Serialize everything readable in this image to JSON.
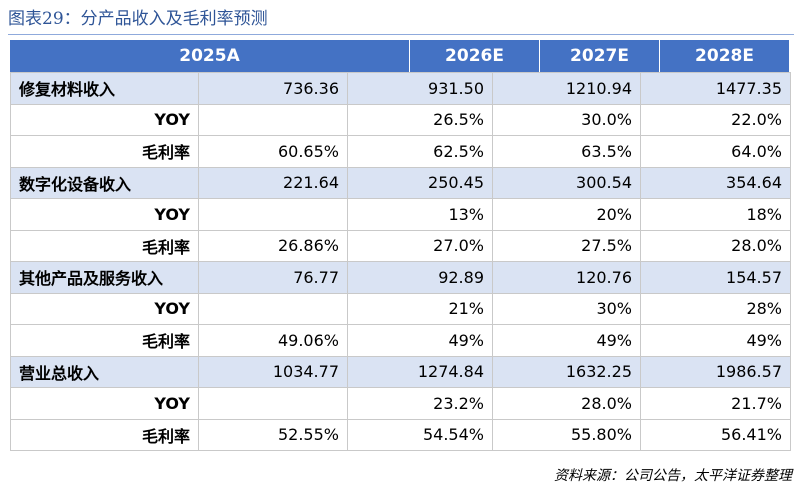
{
  "title": "图表29：分产品收入及毛利率预测",
  "table": {
    "header": [
      "2025A",
      "2026E",
      "2027E",
      "2028E"
    ],
    "rows": [
      [
        "修复材料收入",
        "736.36",
        "931.50",
        "1210.94",
        "1477.35"
      ],
      [
        "YOY",
        null,
        "26.5%",
        "30.0%",
        "22.0%"
      ],
      [
        "毛利率",
        "60.65%",
        "62.5%",
        "63.5%",
        "64.0%"
      ],
      [
        "数字化设备收入",
        "221.64",
        "250.45",
        "300.54",
        "354.64"
      ],
      [
        "YOY",
        null,
        "13%",
        "20%",
        "18%"
      ],
      [
        "毛利率",
        "26.86%",
        "27.0%",
        "27.5%",
        "28.0%"
      ],
      [
        "其他产品及服务收入",
        "76.77",
        "92.89",
        "120.76",
        "154.57"
      ],
      [
        "YOY",
        null,
        "21%",
        "30%",
        "28%"
      ],
      [
        "毛利率",
        "49.06%",
        "49%",
        "49%",
        "49%"
      ],
      [
        "营业总收入",
        "1034.77",
        "1274.84",
        "1632.25",
        "1986.57"
      ],
      [
        "YOY",
        null,
        "23.2%",
        "28.0%",
        "21.7%"
      ],
      [
        "毛利率",
        "52.55%",
        "54.54%",
        "55.80%",
        "56.41%"
      ]
    ]
  },
  "source": "资料来源：公司公告，太平洋证券整理"
}
